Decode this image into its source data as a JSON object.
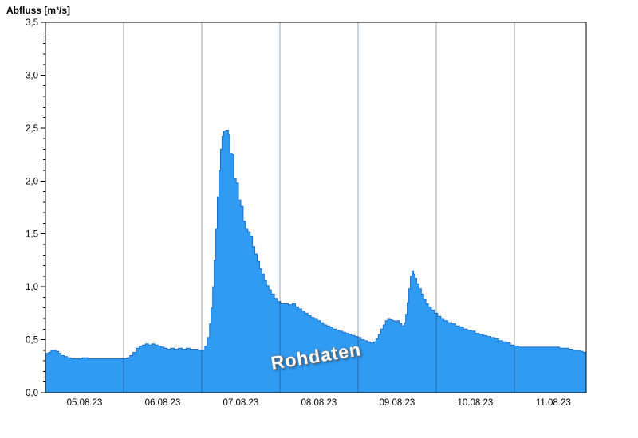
{
  "colors": {
    "fill": "#2f9bf2",
    "stroke": "#1a6fce",
    "grid": "rgba(30,45,80,0.45)",
    "frame": "#000000",
    "axis_text": "#000000",
    "background": "#ffffff"
  },
  "chart_data": {
    "type": "area",
    "title": "Abfluss [m³/s]",
    "ylabel": "Abfluss [m³/s]",
    "xlabel": "",
    "watermark": "Rohdaten",
    "legend_position": "none",
    "grid": "vertical-day-lines",
    "ylim": [
      0,
      3.5
    ],
    "xlim_days": [
      0,
      6.92
    ],
    "y_ticks": [
      {
        "v": 0.0,
        "label": "0,0"
      },
      {
        "v": 0.5,
        "label": "0,5"
      },
      {
        "v": 1.0,
        "label": "1,0"
      },
      {
        "v": 1.5,
        "label": "1,5"
      },
      {
        "v": 2.0,
        "label": "2,0"
      },
      {
        "v": 2.5,
        "label": "2,5"
      },
      {
        "v": 3.0,
        "label": "3,0"
      },
      {
        "v": 3.5,
        "label": "3,5"
      }
    ],
    "y_minor_step": 0.1,
    "x_ticks": [
      {
        "t": 0.5,
        "label": "05.08.23"
      },
      {
        "t": 1.5,
        "label": "06.08.23"
      },
      {
        "t": 2.5,
        "label": "07.08.23"
      },
      {
        "t": 3.5,
        "label": "08.08.23"
      },
      {
        "t": 4.5,
        "label": "09.08.23"
      },
      {
        "t": 5.5,
        "label": "10.08.23"
      },
      {
        "t": 6.5,
        "label": "11.08.23"
      }
    ],
    "day_gridlines": [
      1,
      2,
      3,
      4,
      5,
      6
    ],
    "series": [
      {
        "name": "Rohdaten",
        "unit": "m³/s",
        "points": [
          [
            0.0,
            0.37
          ],
          [
            0.04,
            0.38
          ],
          [
            0.07,
            0.4
          ],
          [
            0.11,
            0.4
          ],
          [
            0.14,
            0.39
          ],
          [
            0.17,
            0.37
          ],
          [
            0.2,
            0.35
          ],
          [
            0.24,
            0.34
          ],
          [
            0.28,
            0.33
          ],
          [
            0.33,
            0.32
          ],
          [
            0.4,
            0.32
          ],
          [
            0.47,
            0.33
          ],
          [
            0.55,
            0.32
          ],
          [
            0.63,
            0.32
          ],
          [
            0.7,
            0.32
          ],
          [
            0.78,
            0.32
          ],
          [
            0.85,
            0.32
          ],
          [
            0.93,
            0.32
          ],
          [
            1.0,
            0.32
          ],
          [
            1.04,
            0.33
          ],
          [
            1.08,
            0.35
          ],
          [
            1.12,
            0.38
          ],
          [
            1.16,
            0.42
          ],
          [
            1.2,
            0.44
          ],
          [
            1.24,
            0.45
          ],
          [
            1.28,
            0.46
          ],
          [
            1.32,
            0.45
          ],
          [
            1.36,
            0.46
          ],
          [
            1.4,
            0.45
          ],
          [
            1.44,
            0.44
          ],
          [
            1.48,
            0.43
          ],
          [
            1.52,
            0.42
          ],
          [
            1.56,
            0.41
          ],
          [
            1.6,
            0.42
          ],
          [
            1.65,
            0.41
          ],
          [
            1.7,
            0.42
          ],
          [
            1.75,
            0.41
          ],
          [
            1.8,
            0.42
          ],
          [
            1.85,
            0.41
          ],
          [
            1.9,
            0.41
          ],
          [
            1.95,
            0.4
          ],
          [
            2.0,
            0.4
          ],
          [
            2.04,
            0.44
          ],
          [
            2.07,
            0.52
          ],
          [
            2.1,
            0.65
          ],
          [
            2.12,
            0.8
          ],
          [
            2.14,
            1.0
          ],
          [
            2.16,
            1.25
          ],
          [
            2.18,
            1.55
          ],
          [
            2.2,
            1.85
          ],
          [
            2.22,
            2.1
          ],
          [
            2.24,
            2.3
          ],
          [
            2.26,
            2.42
          ],
          [
            2.28,
            2.47
          ],
          [
            2.31,
            2.48
          ],
          [
            2.34,
            2.44
          ],
          [
            2.36,
            2.26
          ],
          [
            2.39,
            2.25
          ],
          [
            2.41,
            2.02
          ],
          [
            2.44,
            1.98
          ],
          [
            2.47,
            1.82
          ],
          [
            2.5,
            1.76
          ],
          [
            2.53,
            1.62
          ],
          [
            2.56,
            1.55
          ],
          [
            2.59,
            1.52
          ],
          [
            2.62,
            1.48
          ],
          [
            2.65,
            1.38
          ],
          [
            2.68,
            1.31
          ],
          [
            2.71,
            1.24
          ],
          [
            2.74,
            1.17
          ],
          [
            2.77,
            1.12
          ],
          [
            2.8,
            1.06
          ],
          [
            2.83,
            1.01
          ],
          [
            2.86,
            0.97
          ],
          [
            2.89,
            0.93
          ],
          [
            2.93,
            0.89
          ],
          [
            2.97,
            0.86
          ],
          [
            3.01,
            0.84
          ],
          [
            3.06,
            0.84
          ],
          [
            3.11,
            0.83
          ],
          [
            3.16,
            0.84
          ],
          [
            3.2,
            0.81
          ],
          [
            3.24,
            0.79
          ],
          [
            3.28,
            0.77
          ],
          [
            3.32,
            0.75
          ],
          [
            3.36,
            0.73
          ],
          [
            3.4,
            0.71
          ],
          [
            3.44,
            0.7
          ],
          [
            3.48,
            0.68
          ],
          [
            3.52,
            0.66
          ],
          [
            3.56,
            0.64
          ],
          [
            3.6,
            0.63
          ],
          [
            3.64,
            0.62
          ],
          [
            3.68,
            0.6
          ],
          [
            3.72,
            0.59
          ],
          [
            3.76,
            0.58
          ],
          [
            3.8,
            0.57
          ],
          [
            3.84,
            0.56
          ],
          [
            3.88,
            0.55
          ],
          [
            3.92,
            0.54
          ],
          [
            3.96,
            0.53
          ],
          [
            4.0,
            0.52
          ],
          [
            4.04,
            0.5
          ],
          [
            4.08,
            0.49
          ],
          [
            4.12,
            0.48
          ],
          [
            4.16,
            0.47
          ],
          [
            4.2,
            0.48
          ],
          [
            4.23,
            0.51
          ],
          [
            4.26,
            0.55
          ],
          [
            4.29,
            0.6
          ],
          [
            4.32,
            0.64
          ],
          [
            4.35,
            0.68
          ],
          [
            4.38,
            0.7
          ],
          [
            4.41,
            0.69
          ],
          [
            4.44,
            0.68
          ],
          [
            4.47,
            0.67
          ],
          [
            4.5,
            0.68
          ],
          [
            4.53,
            0.65
          ],
          [
            4.56,
            0.63
          ],
          [
            4.59,
            0.66
          ],
          [
            4.61,
            0.74
          ],
          [
            4.63,
            0.85
          ],
          [
            4.65,
            0.98
          ],
          [
            4.67,
            1.1
          ],
          [
            4.69,
            1.15
          ],
          [
            4.71,
            1.12
          ],
          [
            4.73,
            1.08
          ],
          [
            4.75,
            1.03
          ],
          [
            4.78,
            0.98
          ],
          [
            4.81,
            0.93
          ],
          [
            4.84,
            0.88
          ],
          [
            4.87,
            0.84
          ],
          [
            4.9,
            0.81
          ],
          [
            4.94,
            0.78
          ],
          [
            4.98,
            0.75
          ],
          [
            5.02,
            0.72
          ],
          [
            5.06,
            0.7
          ],
          [
            5.1,
            0.68
          ],
          [
            5.15,
            0.66
          ],
          [
            5.2,
            0.65
          ],
          [
            5.25,
            0.63
          ],
          [
            5.3,
            0.62
          ],
          [
            5.35,
            0.6
          ],
          [
            5.4,
            0.59
          ],
          [
            5.45,
            0.58
          ],
          [
            5.5,
            0.56
          ],
          [
            5.55,
            0.55
          ],
          [
            5.6,
            0.54
          ],
          [
            5.65,
            0.53
          ],
          [
            5.7,
            0.52
          ],
          [
            5.75,
            0.51
          ],
          [
            5.8,
            0.49
          ],
          [
            5.85,
            0.48
          ],
          [
            5.9,
            0.47
          ],
          [
            5.95,
            0.45
          ],
          [
            6.0,
            0.44
          ],
          [
            6.05,
            0.43
          ],
          [
            6.12,
            0.43
          ],
          [
            6.2,
            0.43
          ],
          [
            6.28,
            0.43
          ],
          [
            6.36,
            0.43
          ],
          [
            6.44,
            0.43
          ],
          [
            6.52,
            0.43
          ],
          [
            6.58,
            0.42
          ],
          [
            6.64,
            0.42
          ],
          [
            6.7,
            0.41
          ],
          [
            6.75,
            0.4
          ],
          [
            6.8,
            0.4
          ],
          [
            6.84,
            0.39
          ],
          [
            6.88,
            0.38
          ],
          [
            6.92,
            0.38
          ]
        ]
      }
    ]
  }
}
